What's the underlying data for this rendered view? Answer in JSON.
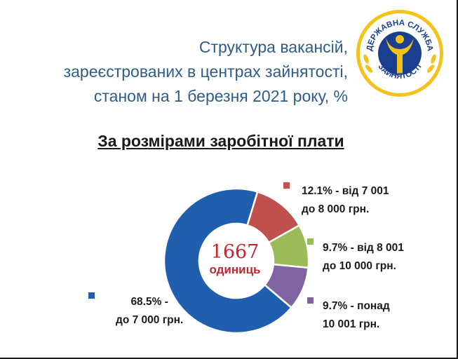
{
  "header": {
    "title_lines": [
      "Структура вакансій,",
      "зареєстрованих в центрах зайнятості,",
      "станом на 1 березня 2021 року, %"
    ],
    "subtitle": "За розмірами заробітної плати"
  },
  "logo": {
    "text": "ДЕРЖАВНА СЛУЖБА ЗАЙНЯТОСТІ",
    "colors": {
      "ring": "#f5c21b",
      "inner": "#1a3f8f",
      "figure": "#f5c21b",
      "leaves": "#f5c21b"
    }
  },
  "chart_data": {
    "type": "pie",
    "variant": "donut",
    "center_label": {
      "value": "1667",
      "unit": "одиниць"
    },
    "slices": [
      {
        "value": 68.5,
        "color": "#1f5fae",
        "label_lines": [
          "68.5% -",
          "до 7 000 грн."
        ]
      },
      {
        "value": 12.1,
        "color": "#c0504d",
        "label_lines": [
          "12.1% - від 7 001",
          "до 8 000 грн."
        ]
      },
      {
        "value": 9.7,
        "color": "#9bbb59",
        "label_lines": [
          "9.7% - від 8 001",
          "до 10 000 грн."
        ]
      },
      {
        "value": 9.7,
        "color": "#8064a2",
        "label_lines": [
          "9.7% - понад",
          "10 001 грн."
        ]
      }
    ]
  }
}
